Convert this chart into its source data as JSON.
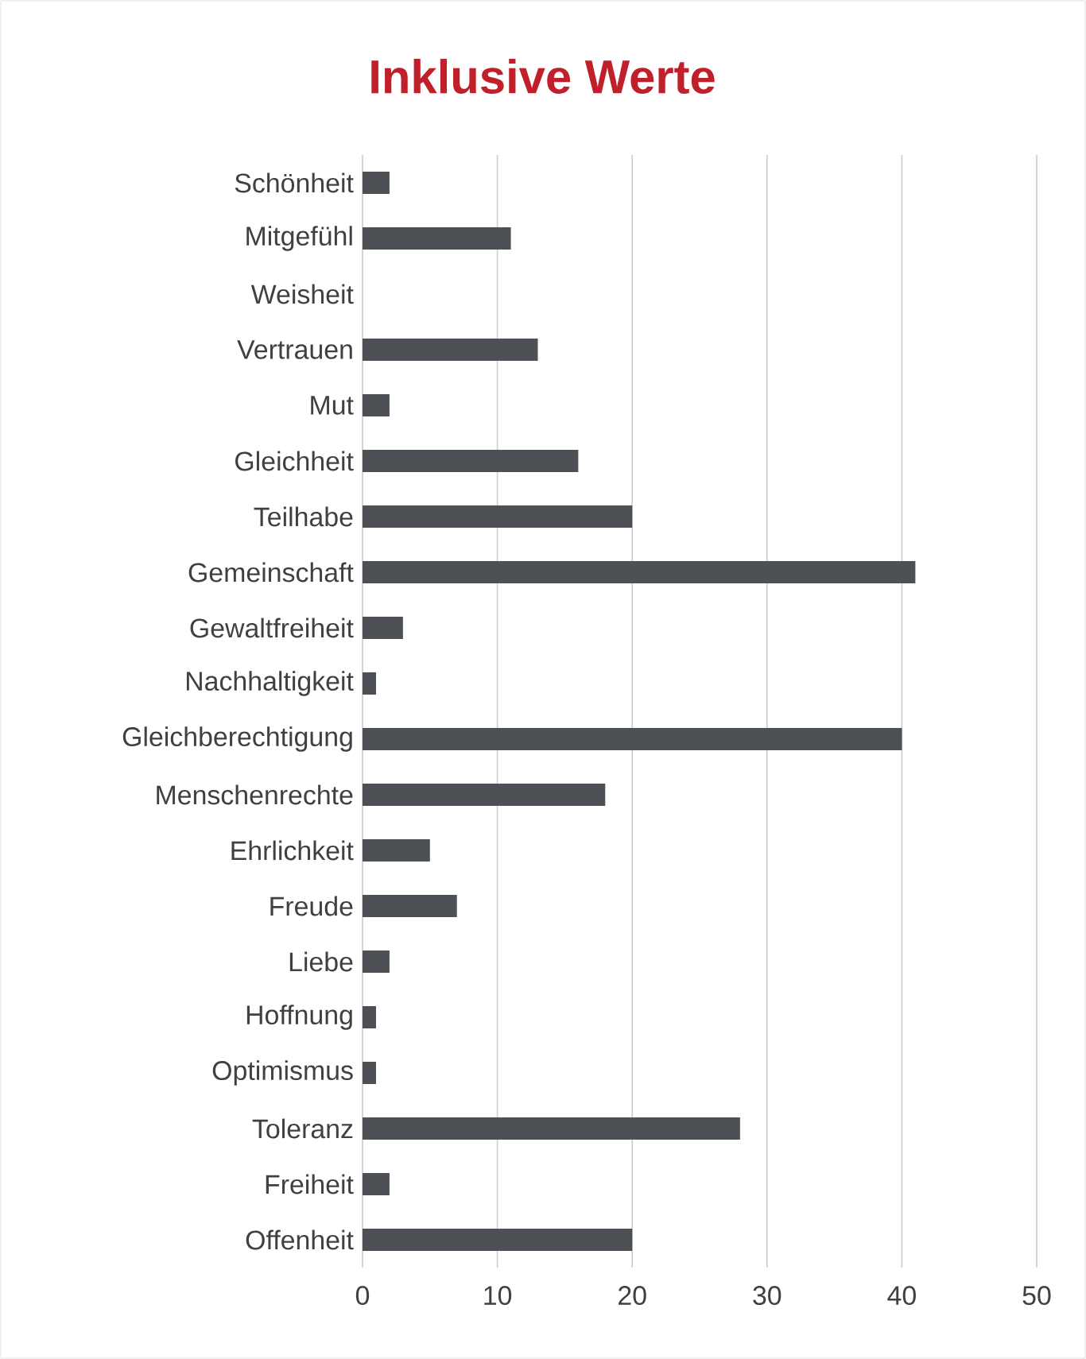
{
  "chart_data": {
    "type": "bar",
    "orientation": "horizontal",
    "title": "Inklusive Werte",
    "categories": [
      "Schönheit",
      "Mitgefühl",
      "Weisheit",
      "Vertrauen",
      "Mut",
      "Gleichheit",
      "Teilhabe",
      "Gemeinschaft",
      "Gewaltfreiheit",
      "Nachhaltigkeit",
      "Gleichberechtigung",
      "Menschenrechte",
      "Ehrlichkeit",
      "Freude",
      "Liebe",
      "Hoffnung",
      "Optimismus",
      "Toleranz",
      "Freiheit",
      "Offenheit"
    ],
    "values": [
      2,
      11,
      0,
      13,
      2,
      16,
      20,
      41,
      3,
      1,
      40,
      18,
      5,
      7,
      2,
      1,
      1,
      28,
      2,
      20
    ],
    "color": "#4d5054",
    "xlim": [
      0,
      50
    ],
    "xticks": [
      0,
      10,
      20,
      30,
      40,
      50
    ],
    "grid": "x"
  }
}
